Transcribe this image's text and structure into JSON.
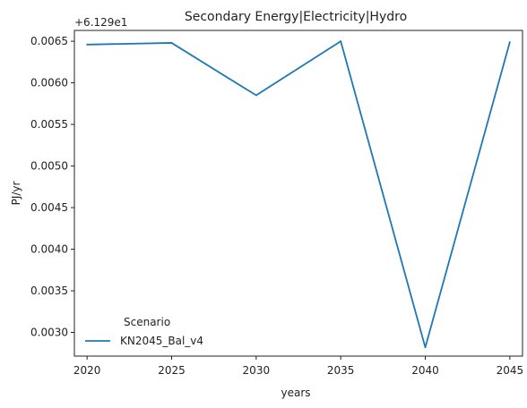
{
  "chart_data": {
    "type": "line",
    "title": "Secondary Energy|Electricity|Hydro",
    "xlabel": "years",
    "ylabel": "PJ/yr",
    "offset_label": "+6.129e1",
    "x": [
      2020,
      2025,
      2030,
      2035,
      2040,
      2045
    ],
    "x_ticks": [
      "2020",
      "2025",
      "2030",
      "2035",
      "2040",
      "2045"
    ],
    "y_ticks": [
      "0.0030",
      "0.0035",
      "0.0040",
      "0.0045",
      "0.0050",
      "0.0055",
      "0.0060",
      "0.0065"
    ],
    "y_tick_values": [
      0.003,
      0.0035,
      0.004,
      0.0045,
      0.005,
      0.0055,
      0.006,
      0.0065
    ],
    "xlim": [
      2019.25,
      2045.75
    ],
    "ylim": [
      0.002715,
      0.00663
    ],
    "grid": false,
    "legend": {
      "title": "Scenario",
      "placement": "lower-left"
    },
    "series": [
      {
        "name": "KN2045_Bal_v4",
        "color": "#1f77b4",
        "values": [
          0.00646,
          0.00648,
          0.00585,
          0.0065,
          0.00282,
          0.00649
        ]
      }
    ]
  }
}
